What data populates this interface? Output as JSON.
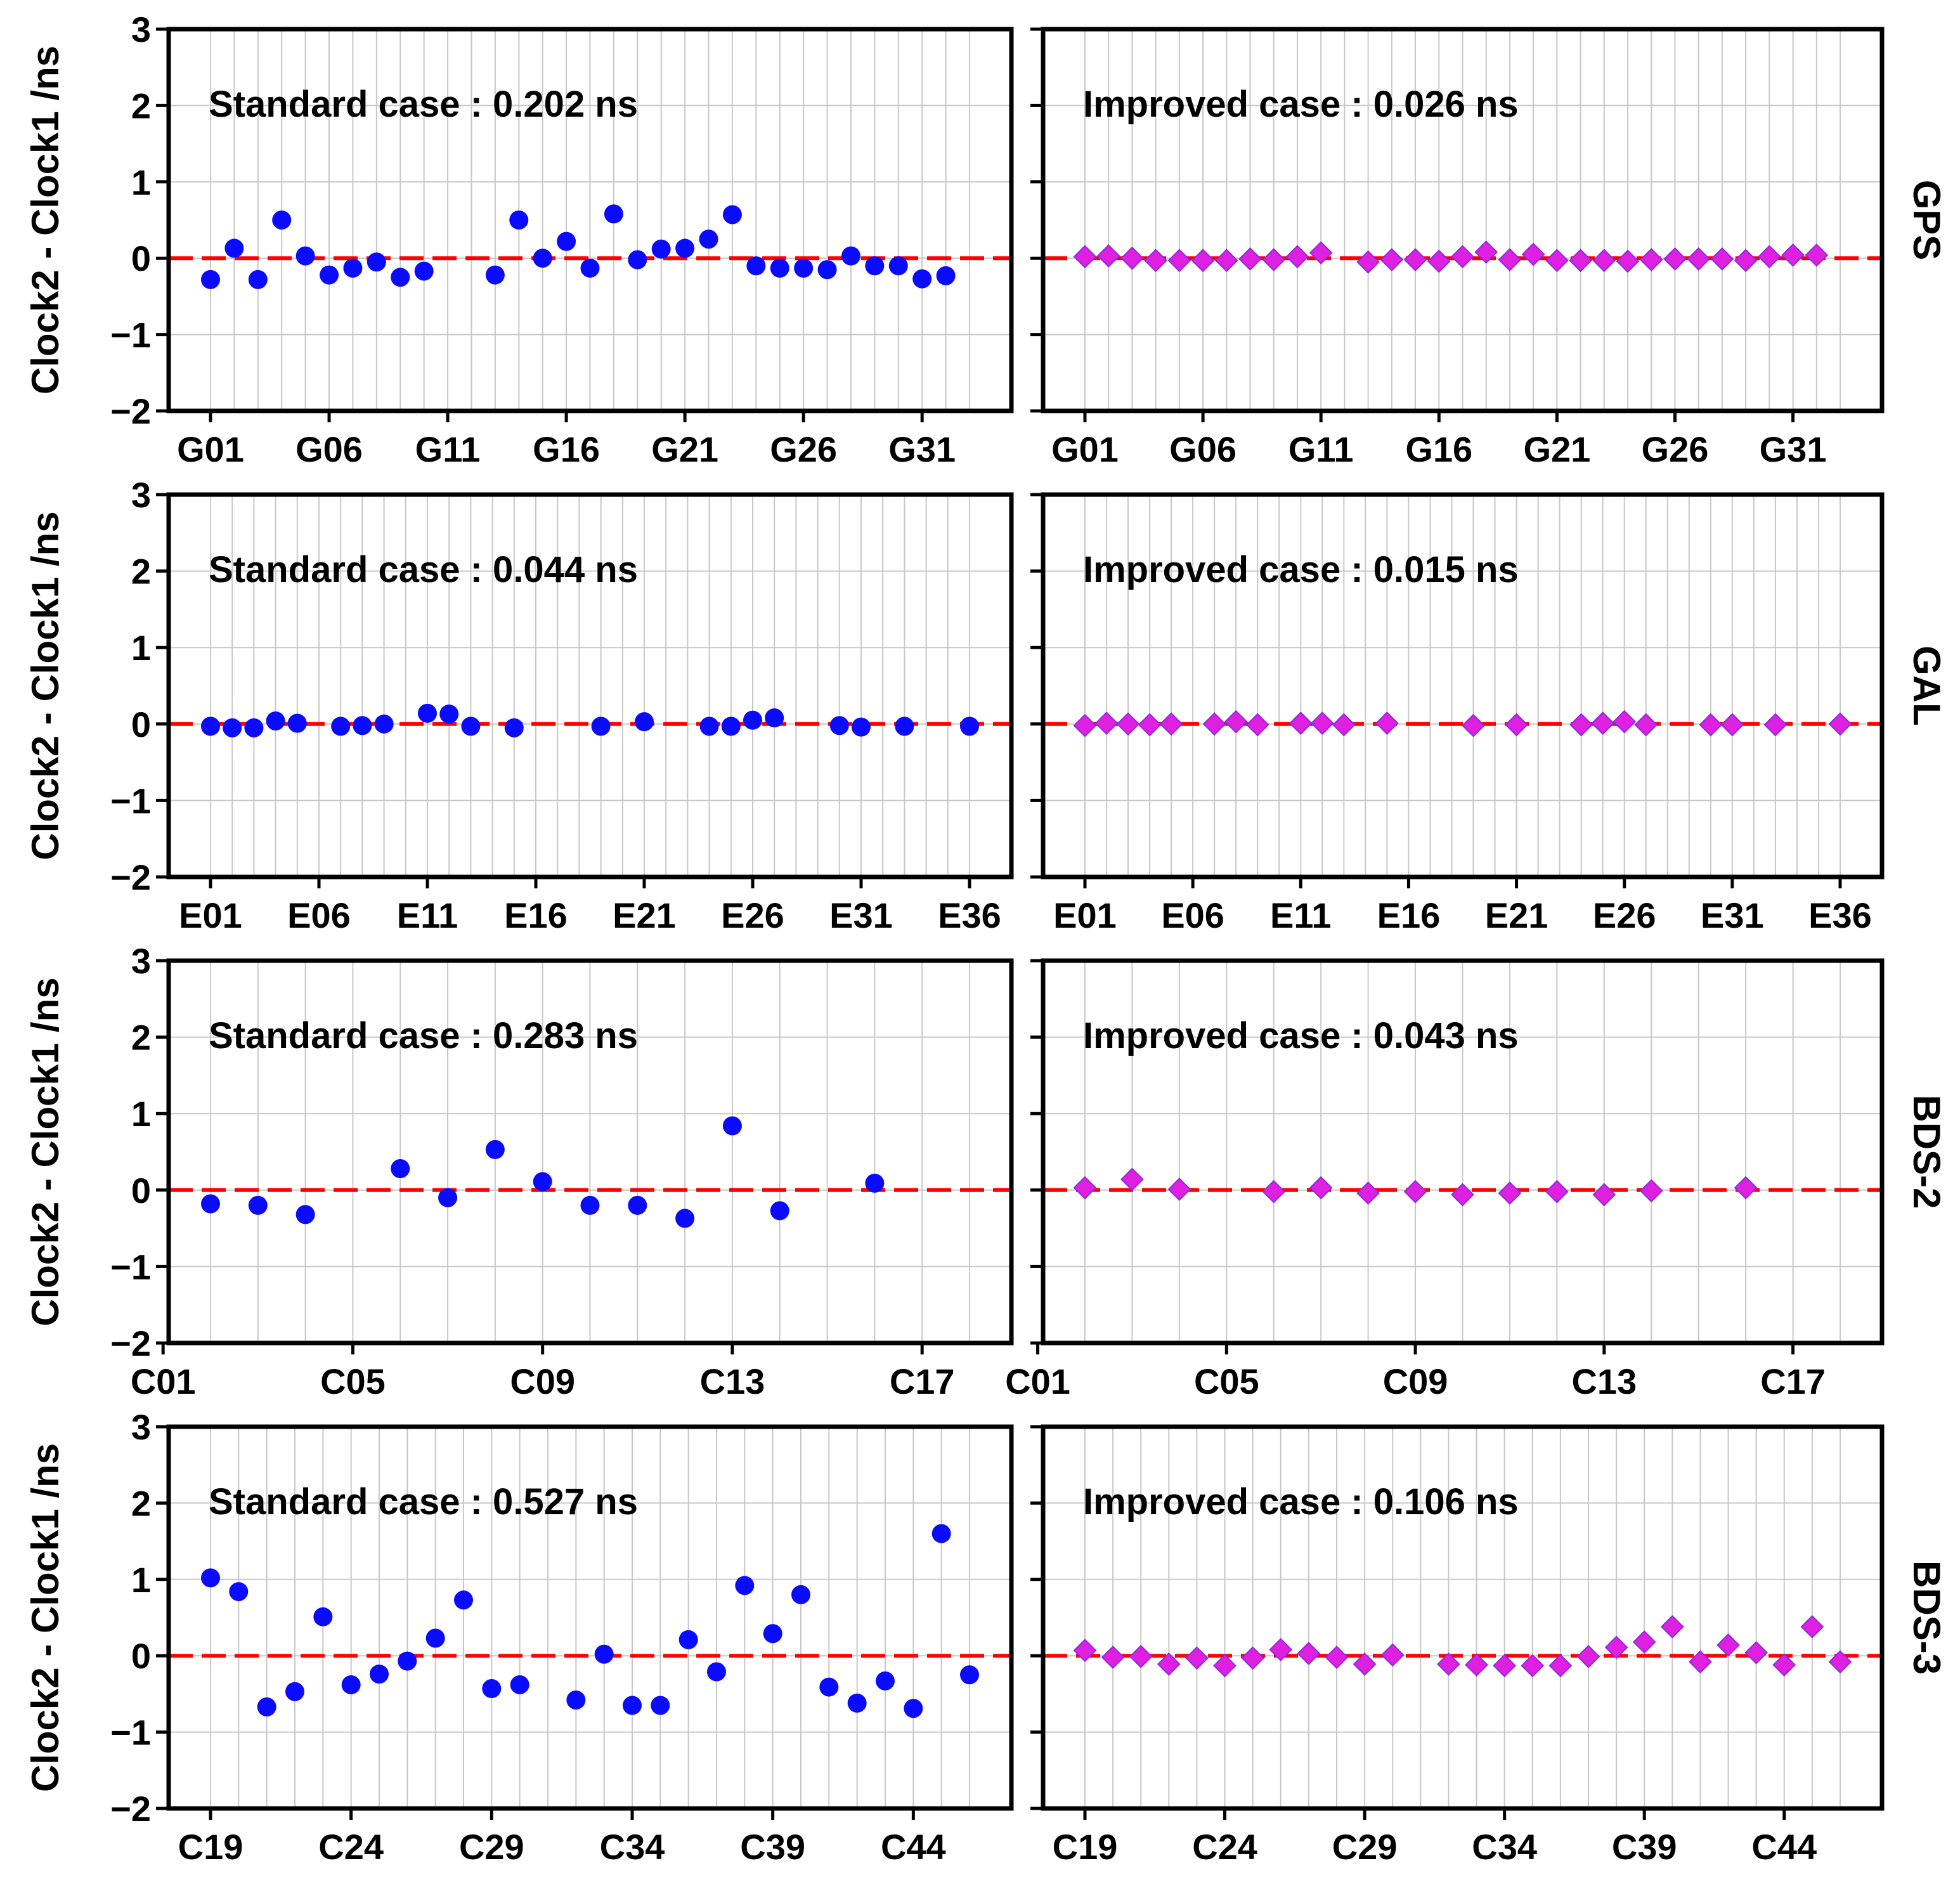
{
  "y_axis_label": "Clock2 - Clock1  /ns",
  "y_ticks": [
    3,
    2,
    1,
    0,
    -1,
    -2
  ],
  "y_tick_labels": [
    "3",
    "2",
    "1",
    "0",
    "−1",
    "−2"
  ],
  "colors": {
    "standard": "#0a0aff",
    "improved": "#e020e0",
    "improved_edge": "#8a2be2",
    "zero_line": "#ff0000"
  },
  "rows": [
    {
      "system": "GPS",
      "x_count": 33,
      "x_tick_labels": [
        "G01",
        "G06",
        "G11",
        "G16",
        "G21",
        "G26",
        "G31"
      ],
      "standard_text": "Standard case : 0.202 ns",
      "improved_text": "Improved case : 0.026 ns"
    },
    {
      "system": "GAL",
      "x_count": 36,
      "x_tick_labels": [
        "E01",
        "E06",
        "E11",
        "E16",
        "E21",
        "E26",
        "E31",
        "E36"
      ],
      "standard_text": "Standard case : 0.044 ns",
      "improved_text": "Improved case : 0.015 ns"
    },
    {
      "system": "BDS-2",
      "x_count": 17,
      "x_tick_labels": [
        "C01",
        "C05",
        "C09",
        "C13",
        "C17"
      ],
      "standard_text": "Standard case : 0.283 ns",
      "improved_text": "Improved case : 0.043 ns"
    },
    {
      "system": "BDS-3",
      "x_count": 28,
      "x_tick_labels": [
        "C19",
        "C24",
        "C29",
        "C34",
        "C39",
        "C44"
      ],
      "standard_text": "Standard case : 0.527 ns",
      "improved_text": "Improved case : 0.106 ns"
    }
  ],
  "chart_data": [
    {
      "type": "scatter",
      "system": "GPS",
      "case": "standard",
      "title": "Standard case : 0.202 ns",
      "ylabel": "Clock2 - Clock1  /ns",
      "ylim": [
        -2,
        3
      ],
      "x": [
        1,
        2,
        3,
        4,
        5,
        6,
        7,
        8,
        9,
        10,
        11,
        13,
        14,
        15,
        16,
        17,
        18,
        19,
        20,
        21,
        22,
        23,
        24,
        25,
        26,
        27,
        28,
        29,
        30,
        31,
        32
      ],
      "values": [
        -0.28,
        0.13,
        -0.28,
        0.5,
        0.03,
        -0.22,
        -0.13,
        -0.05,
        -0.25,
        -0.17,
        null,
        -0.22,
        0.5,
        0.0,
        0.22,
        -0.13,
        0.58,
        -0.02,
        0.12,
        0.13,
        0.25,
        0.57,
        -0.1,
        -0.13,
        -0.13,
        -0.15,
        0.03,
        -0.1,
        -0.1,
        -0.27,
        -0.23
      ]
    },
    {
      "type": "scatter",
      "system": "GPS",
      "case": "improved",
      "title": "Improved case : 0.026 ns",
      "ylabel": "Clock2 - Clock1  /ns",
      "ylim": [
        -2,
        3
      ],
      "x": [
        1,
        2,
        3,
        4,
        5,
        6,
        7,
        8,
        9,
        10,
        11,
        13,
        14,
        15,
        16,
        17,
        18,
        19,
        20,
        21,
        22,
        23,
        24,
        25,
        26,
        27,
        28,
        29,
        30,
        31,
        32
      ],
      "values": [
        0.02,
        0.03,
        0.0,
        -0.03,
        -0.03,
        -0.03,
        -0.03,
        -0.01,
        -0.02,
        0.02,
        0.07,
        -0.05,
        -0.02,
        -0.02,
        -0.04,
        0.02,
        0.08,
        -0.02,
        0.05,
        -0.03,
        -0.03,
        -0.03,
        -0.04,
        -0.02,
        -0.01,
        -0.01,
        -0.01,
        -0.03,
        0.02,
        0.04,
        0.04
      ]
    },
    {
      "type": "scatter",
      "system": "GAL",
      "case": "standard",
      "title": "Standard case : 0.044 ns",
      "ylabel": "Clock2 - Clock1  /ns",
      "ylim": [
        -2,
        3
      ],
      "x": [
        1,
        2,
        3,
        4,
        5,
        7,
        8,
        9,
        11,
        12,
        13,
        15,
        19,
        21,
        24,
        25,
        26,
        27,
        30,
        31,
        33,
        36
      ],
      "values": [
        -0.03,
        -0.05,
        -0.05,
        0.04,
        0.01,
        -0.03,
        -0.02,
        0.0,
        0.14,
        0.13,
        -0.03,
        -0.05,
        -0.03,
        0.03,
        -0.03,
        -0.03,
        0.05,
        0.08,
        -0.02,
        -0.04,
        -0.03,
        -0.03
      ]
    },
    {
      "type": "scatter",
      "system": "GAL",
      "case": "improved",
      "title": "Improved case : 0.015 ns",
      "ylabel": "Clock2 - Clock1  /ns",
      "ylim": [
        -2,
        3
      ],
      "x": [
        1,
        2,
        3,
        4,
        5,
        7,
        8,
        9,
        11,
        12,
        13,
        15,
        19,
        21,
        24,
        25,
        26,
        27,
        30,
        31,
        33,
        36
      ],
      "values": [
        -0.02,
        0.01,
        0.0,
        -0.01,
        0.0,
        0.0,
        0.03,
        -0.01,
        0.01,
        0.01,
        -0.01,
        0.01,
        -0.02,
        -0.01,
        -0.01,
        0.01,
        0.03,
        -0.01,
        -0.01,
        -0.01,
        -0.01,
        0.0
      ]
    },
    {
      "type": "scatter",
      "system": "BDS-2",
      "case": "standard",
      "title": "Standard case : 0.283 ns",
      "ylabel": "Clock2 - Clock1  /ns",
      "ylim": [
        -2,
        3
      ],
      "x": [
        2,
        3,
        4,
        6,
        7,
        8,
        9,
        10,
        11,
        12,
        13,
        14,
        16
      ],
      "values": [
        -0.18,
        -0.2,
        -0.32,
        0.28,
        -0.1,
        0.53,
        0.11,
        -0.2,
        -0.2,
        -0.37,
        0.84,
        -0.27,
        0.09
      ]
    },
    {
      "type": "scatter",
      "system": "BDS-2",
      "case": "improved",
      "title": "Improved case : 0.043 ns",
      "ylabel": "Clock2 - Clock1  /ns",
      "ylim": [
        -2,
        3
      ],
      "x": [
        2,
        3,
        4,
        6,
        7,
        8,
        9,
        10,
        11,
        12,
        13,
        14,
        16
      ],
      "values": [
        0.03,
        0.14,
        0.01,
        -0.02,
        0.03,
        -0.04,
        -0.02,
        -0.06,
        -0.04,
        -0.02,
        -0.06,
        -0.01,
        0.03
      ]
    },
    {
      "type": "scatter",
      "system": "BDS-3",
      "case": "standard",
      "title": "Standard case : 0.527 ns",
      "ylabel": "Clock2 - Clock1  /ns",
      "ylim": [
        -2,
        3
      ],
      "x": [
        19,
        20,
        21,
        22,
        23,
        24,
        25,
        26,
        27,
        28,
        29,
        30,
        32,
        33,
        34,
        35,
        36,
        37,
        38,
        39,
        40,
        41,
        42,
        43,
        44,
        45,
        46
      ],
      "values": [
        1.02,
        0.84,
        -0.67,
        -0.47,
        0.51,
        -0.38,
        -0.24,
        -0.07,
        0.23,
        0.73,
        -0.43,
        -0.38,
        -0.58,
        0.02,
        -0.65,
        -0.65,
        0.21,
        -0.21,
        0.92,
        0.29,
        0.8,
        -0.41,
        -0.62,
        -0.33,
        -0.69,
        1.6,
        -0.25
      ]
    },
    {
      "type": "scatter",
      "system": "BDS-3",
      "case": "improved",
      "title": "Improved case : 0.106 ns",
      "ylabel": "Clock2 - Clock1  /ns",
      "ylim": [
        -2,
        3
      ],
      "x": [
        19,
        20,
        21,
        22,
        23,
        24,
        25,
        26,
        27,
        28,
        29,
        30,
        32,
        33,
        34,
        35,
        36,
        37,
        38,
        39,
        40,
        41,
        42,
        43,
        44,
        45,
        46
      ],
      "values": [
        0.07,
        -0.02,
        -0.01,
        -0.11,
        -0.03,
        -0.13,
        -0.03,
        0.08,
        0.03,
        -0.02,
        -0.11,
        0.01,
        -0.11,
        -0.12,
        -0.13,
        -0.13,
        -0.13,
        -0.01,
        0.11,
        0.18,
        0.38,
        -0.08,
        0.14,
        0.04,
        -0.12,
        0.38,
        -0.08
      ]
    }
  ]
}
